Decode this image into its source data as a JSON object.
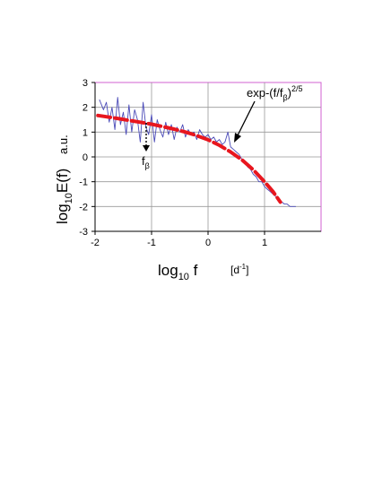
{
  "chart_data": {
    "type": "line",
    "ylabel": {
      "prefix": "log",
      "subscript": "10",
      "suffix": "E(f)",
      "unit": "a.u."
    },
    "xlabel": {
      "prefix": "log",
      "subscript": "10",
      "suffix": " f",
      "unit_prefix": "[d",
      "unit_sup": "-1",
      "unit_suffix": "]"
    },
    "xlim": [
      -2,
      2
    ],
    "ylim": [
      -3,
      3
    ],
    "x_ticks": [
      "-2",
      "-1",
      "0",
      "1"
    ],
    "y_ticks": [
      "3",
      "2",
      "1",
      "0",
      "-1",
      "-2",
      "-3"
    ],
    "grid": true,
    "series": [
      {
        "color": "#4a4ab8",
        "style": "noisy-thin",
        "x": [
          -1.92,
          -1.85,
          -1.8,
          -1.75,
          -1.7,
          -1.65,
          -1.6,
          -1.55,
          -1.5,
          -1.45,
          -1.4,
          -1.35,
          -1.3,
          -1.25,
          -1.2,
          -1.15,
          -1.1,
          -1.05,
          -1.0,
          -0.95,
          -0.9,
          -0.85,
          -0.8,
          -0.75,
          -0.7,
          -0.65,
          -0.6,
          -0.55,
          -0.5,
          -0.45,
          -0.4,
          -0.35,
          -0.3,
          -0.25,
          -0.2,
          -0.15,
          -0.1,
          -0.05,
          0.0,
          0.05,
          0.1,
          0.15,
          0.2,
          0.25,
          0.3,
          0.35,
          0.4,
          0.45,
          0.5,
          0.55,
          0.6,
          0.65,
          0.7,
          0.75,
          0.8,
          0.85,
          0.9,
          0.95,
          1.0,
          1.05,
          1.1,
          1.15,
          1.2,
          1.25,
          1.3,
          1.35,
          1.4,
          1.45,
          1.5,
          1.55
        ],
        "y": [
          2.3,
          1.9,
          2.2,
          1.4,
          2.0,
          1.1,
          2.4,
          1.3,
          1.8,
          0.9,
          2.1,
          1.0,
          1.9,
          1.5,
          0.6,
          2.2,
          1.2,
          0.9,
          1.7,
          0.6,
          1.5,
          1.1,
          0.8,
          1.4,
          0.9,
          1.3,
          0.7,
          1.2,
          1.0,
          1.3,
          0.8,
          1.1,
          0.9,
          1.0,
          0.7,
          1.1,
          0.9,
          0.8,
          0.9,
          0.7,
          0.8,
          0.6,
          0.7,
          0.5,
          0.6,
          1.0,
          0.4,
          0.3,
          0.2,
          0.1,
          -0.1,
          -0.2,
          -0.4,
          -0.5,
          -0.7,
          -0.8,
          -1.0,
          -1.0,
          -1.2,
          -1.3,
          -1.4,
          -1.5,
          -1.6,
          -1.7,
          -1.8,
          -1.9,
          -1.9,
          -2.0,
          -2.0,
          -2.0
        ]
      },
      {
        "color": "#e8161e",
        "style": "thick-dashed-fit",
        "x": [
          -1.95,
          -1.8,
          -1.6,
          -1.4,
          -1.2,
          -1.0,
          -0.8,
          -0.6,
          -0.4,
          -0.2,
          0.0,
          0.2,
          0.4,
          0.6,
          0.8,
          1.0,
          1.15,
          1.28
        ],
        "y": [
          1.67,
          1.62,
          1.55,
          1.47,
          1.4,
          1.32,
          1.22,
          1.12,
          1.0,
          0.86,
          0.69,
          0.47,
          0.2,
          -0.12,
          -0.52,
          -1.0,
          -1.4,
          -1.82
        ]
      }
    ],
    "annotations": [
      {
        "text_prefix": "exp-(f/f",
        "text_sub": "β",
        "text_mid": ")",
        "text_sup": "2/5"
      },
      {
        "text_prefix": "f",
        "text_sub": "β"
      }
    ]
  }
}
